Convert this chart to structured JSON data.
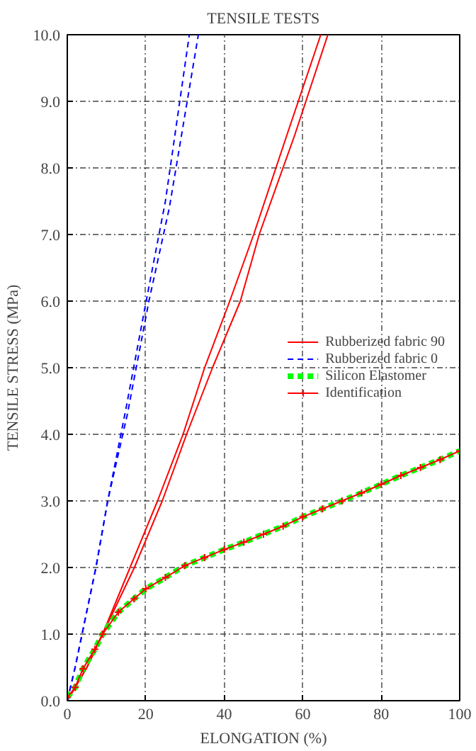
{
  "chart_data": {
    "type": "line",
    "title": "TENSILE TESTS",
    "xlabel": "ELONGATION (%)",
    "ylabel": "TENSILE STRESS (MPa)",
    "xlim": [
      0,
      100
    ],
    "ylim": [
      0,
      10
    ],
    "xticks": [
      0,
      20,
      40,
      60,
      80,
      100
    ],
    "yticks": [
      {
        "value": 0,
        "label": "0.0"
      },
      {
        "value": 1,
        "label": "1.0"
      },
      {
        "value": 2,
        "label": "2.0"
      },
      {
        "value": 3,
        "label": "3.0"
      },
      {
        "value": 4,
        "label": "4.0"
      },
      {
        "value": 5,
        "label": "5.0"
      },
      {
        "value": 6,
        "label": "6.0"
      },
      {
        "value": 7,
        "label": "7.0"
      },
      {
        "value": 8,
        "label": "8.0"
      },
      {
        "value": 9,
        "label": "9.0"
      },
      {
        "value": 10,
        "label": "10.0"
      }
    ],
    "grid": true,
    "legend": "right",
    "series": [
      {
        "name": "Rubberized fabric 90",
        "color": "#ff0000",
        "line_style": "solid",
        "marker": "none",
        "x": [
          0,
          5,
          9,
          16,
          23,
          29.5,
          35,
          41.4,
          47.5,
          56,
          64.6
        ],
        "values": [
          0,
          0.5,
          1,
          2,
          3,
          4,
          5,
          6,
          7,
          8.5,
          10
        ]
      },
      {
        "color": "#ff0000",
        "line_style": "solid",
        "marker": "none",
        "x": [
          0,
          5,
          9,
          17.1,
          24.2,
          30.4,
          37,
          44.1,
          48.9,
          58,
          66.4
        ],
        "values": [
          0,
          0.5,
          1,
          2,
          3,
          4,
          5,
          6,
          7,
          8.5,
          10
        ]
      },
      {
        "name": "Rubberized fabric 0",
        "color": "#0000ff",
        "line_style": "dashed",
        "marker": "none",
        "x": [
          0,
          2,
          7.3,
          10.3,
          15,
          20.1,
          25,
          31.1
        ],
        "values": [
          0,
          0.5,
          2,
          3,
          4.4,
          6,
          7.5,
          10
        ]
      },
      {
        "color": "#0000ff",
        "line_style": "dashed",
        "marker": "none",
        "x": [
          0,
          2,
          7.3,
          10.3,
          15.3,
          20.8,
          26,
          33.4
        ],
        "values": [
          0,
          0.5,
          2,
          3,
          4.3,
          6,
          7.4,
          10
        ]
      },
      {
        "name": "Silicon Elastomer",
        "color": "#00ff00",
        "line_style": "dashed",
        "marker": "none",
        "x": [
          0,
          2,
          4,
          7,
          9,
          13,
          17,
          20,
          25,
          30,
          35,
          40,
          45,
          50,
          55,
          60,
          65,
          70,
          75,
          80,
          85,
          90,
          95,
          100
        ],
        "values": [
          0.05,
          0.2,
          0.48,
          0.77,
          1.0,
          1.33,
          1.53,
          1.68,
          1.85,
          2.03,
          2.15,
          2.27,
          2.38,
          2.5,
          2.62,
          2.76,
          2.88,
          3.0,
          3.12,
          3.25,
          3.38,
          3.5,
          3.62,
          3.75
        ]
      },
      {
        "name": "Identification",
        "color": "#ff0000",
        "line_style": "solid",
        "marker": "cross",
        "x": [
          0,
          2,
          4,
          7,
          9,
          13,
          17,
          20,
          25,
          30,
          35,
          40,
          45,
          50,
          55,
          60,
          65,
          70,
          75,
          80,
          85,
          90,
          95,
          100
        ],
        "values": [
          0.05,
          0.2,
          0.48,
          0.77,
          1.0,
          1.33,
          1.53,
          1.68,
          1.85,
          2.03,
          2.15,
          2.27,
          2.38,
          2.5,
          2.62,
          2.76,
          2.88,
          3.0,
          3.12,
          3.25,
          3.38,
          3.5,
          3.62,
          3.75
        ]
      }
    ]
  }
}
